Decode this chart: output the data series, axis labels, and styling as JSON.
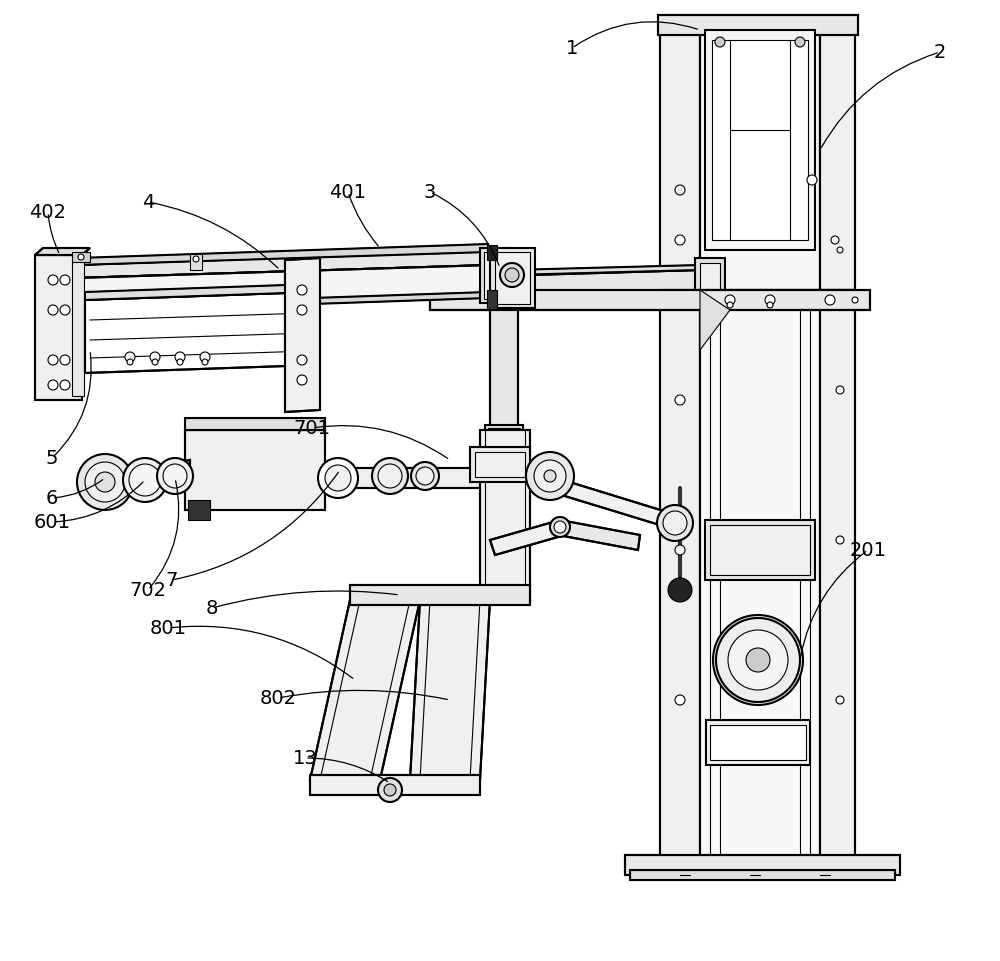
{
  "background_color": "#ffffff",
  "fig_width": 10.0,
  "fig_height": 9.61,
  "labels": {
    "1": [
      572,
      48,
      14
    ],
    "2": [
      940,
      52,
      14
    ],
    "3": [
      430,
      192,
      14
    ],
    "4": [
      148,
      202,
      14
    ],
    "5": [
      52,
      458,
      14
    ],
    "6": [
      52,
      498,
      14
    ],
    "7": [
      172,
      580,
      14
    ],
    "8": [
      212,
      608,
      14
    ],
    "13": [
      305,
      758,
      14
    ],
    "201": [
      868,
      550,
      14
    ],
    "401": [
      348,
      192,
      14
    ],
    "402": [
      48,
      212,
      14
    ],
    "601": [
      52,
      522,
      14
    ],
    "701": [
      312,
      428,
      14
    ],
    "702": [
      148,
      590,
      14
    ],
    "801": [
      168,
      628,
      14
    ],
    "802": [
      278,
      698,
      14
    ]
  }
}
